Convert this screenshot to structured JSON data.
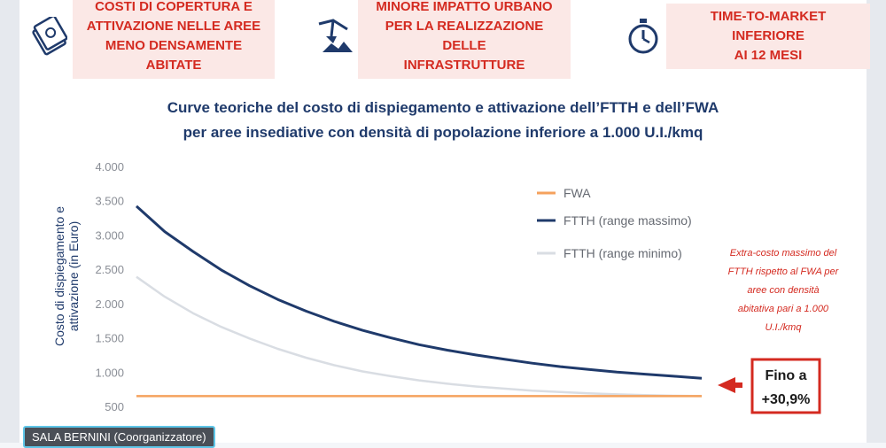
{
  "benefits": [
    {
      "icon": "money-icon",
      "text": "COSTI DI COPERTURA E\nATTIVAZIONE NELLE AREE\nMENO DENSAMENTE ABITATE"
    },
    {
      "icon": "excavator-icon",
      "text": "MINORE IMPATTO URBANO\nPER LA REALIZZAZIONE DELLE\nINFRASTRUTTURE"
    },
    {
      "icon": "stopwatch-icon",
      "text": "TIME-TO-MARKET INFERIORE\nAI 12 MESI"
    }
  ],
  "chart_title_line1": "Curve teoriche del costo di dispiegamento e attivazione dell’FTTH e dell’FWA",
  "chart_title_line2": "per aree insediative con densità di popolazione inferiore a 1.000 U.I./kmq",
  "annotation_lines": [
    "Extra-costo massimo del",
    "FTTH rispetto al FWA per",
    "aree con densità",
    "abitativa pari a 1.000",
    "U.I./kmq"
  ],
  "callout_line1": "Fino a",
  "callout_line2": "+30,9%",
  "footer_tag": "SALA BERNINI (Coorganizzatore)",
  "colors": {
    "fwa": "#f5a25d",
    "ftth_max": "#1f3a6b",
    "ftth_min": "#d9dde3",
    "accent_red": "#d42a20",
    "title": "#1f3a6b"
  },
  "chart_data": {
    "type": "line",
    "ylabel_line1": "Costo di dispiegamento e",
    "ylabel_line2": "attivazione (in Euro)",
    "ylim": [
      500,
      4000
    ],
    "yticks": [
      500,
      1000,
      1500,
      2000,
      2500,
      3000,
      3500,
      4000
    ],
    "ytick_labels": [
      "500",
      "1.000",
      "1.500",
      "2.000",
      "2.500",
      "3.000",
      "3.500",
      "4.000"
    ],
    "x": [
      0,
      1,
      2,
      3,
      4,
      5,
      6,
      7,
      8,
      9,
      10,
      11,
      12,
      13,
      14,
      15,
      16,
      17,
      18,
      19,
      20
    ],
    "series": [
      {
        "name": "FWA",
        "values": [
          650,
          650,
          650,
          650,
          650,
          650,
          650,
          650,
          650,
          650,
          650,
          650,
          650,
          650,
          650,
          650,
          650,
          650,
          650,
          650,
          650
        ]
      },
      {
        "name": "FTTH (range massimo)",
        "values": [
          3420,
          3050,
          2760,
          2490,
          2260,
          2060,
          1890,
          1740,
          1610,
          1500,
          1400,
          1320,
          1250,
          1190,
          1130,
          1080,
          1040,
          1000,
          970,
          940,
          910
        ]
      },
      {
        "name": "FTTH (range minimo)",
        "values": [
          2390,
          2100,
          1860,
          1660,
          1490,
          1340,
          1210,
          1100,
          1010,
          940,
          880,
          830,
          790,
          760,
          730,
          710,
          690,
          675,
          665,
          655,
          650
        ]
      }
    ],
    "legend_position": "top-right",
    "grid": false
  }
}
